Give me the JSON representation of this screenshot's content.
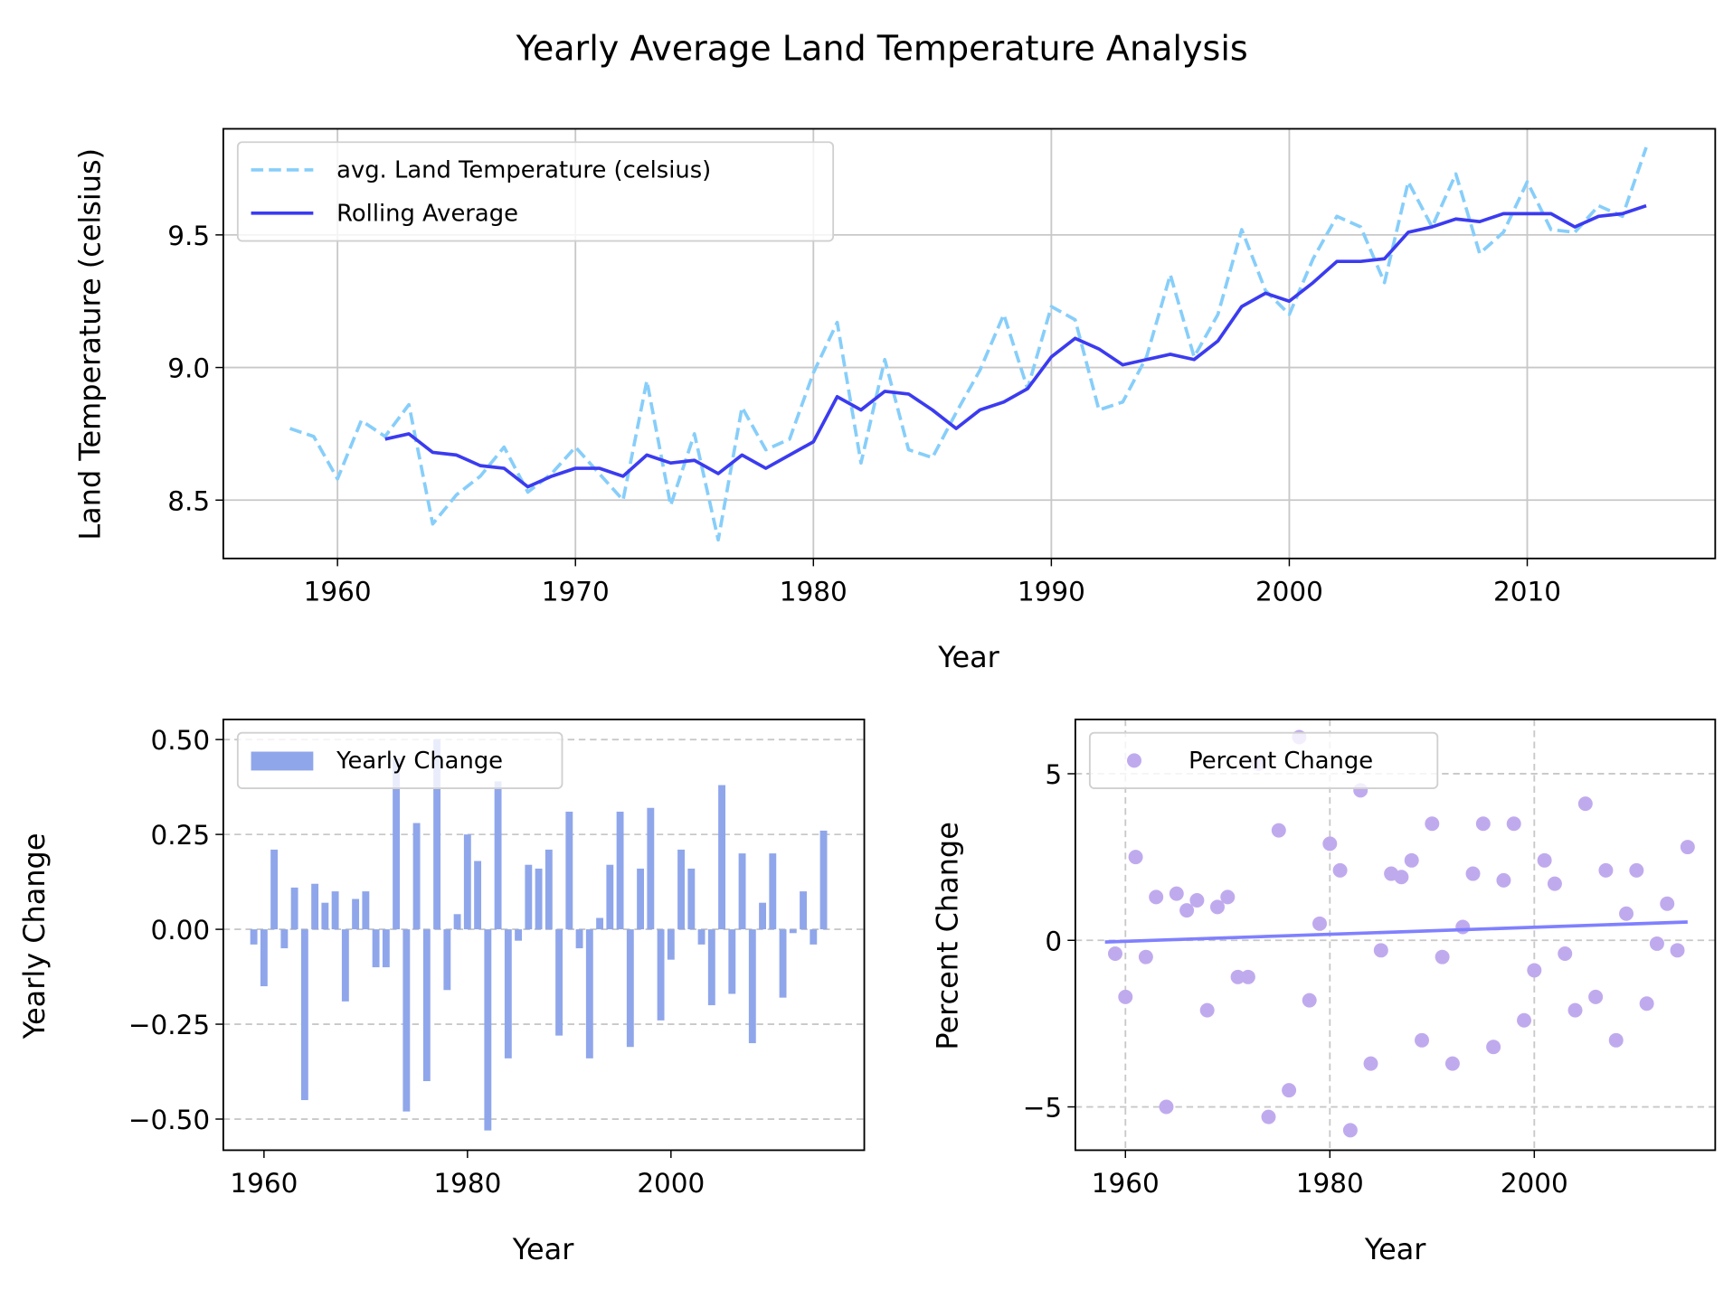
{
  "title": "Yearly Average Land Temperature Analysis",
  "chart_data": [
    {
      "type": "line",
      "xlabel": "Year",
      "ylabel": "Land Temperature (celsius)",
      "x": [
        1958,
        1959,
        1960,
        1961,
        1962,
        1963,
        1964,
        1965,
        1966,
        1967,
        1968,
        1969,
        1970,
        1971,
        1972,
        1973,
        1974,
        1975,
        1976,
        1977,
        1978,
        1979,
        1980,
        1981,
        1982,
        1983,
        1984,
        1985,
        1986,
        1987,
        1988,
        1989,
        1990,
        1991,
        1992,
        1993,
        1994,
        1995,
        1996,
        1997,
        1998,
        1999,
        2000,
        2001,
        2002,
        2003,
        2004,
        2005,
        2006,
        2007,
        2008,
        2009,
        2010,
        2011,
        2012,
        2013,
        2014,
        2015
      ],
      "series": [
        {
          "name": "avg. Land Temperature (celsius)",
          "color": "#87cefa",
          "dashed": true,
          "values": [
            8.77,
            8.74,
            8.58,
            8.8,
            8.74,
            8.86,
            8.41,
            8.52,
            8.59,
            8.7,
            8.53,
            8.6,
            8.7,
            8.6,
            8.5,
            8.95,
            8.48,
            8.75,
            8.35,
            8.85,
            8.69,
            8.73,
            8.98,
            9.17,
            8.64,
            9.03,
            8.69,
            8.66,
            8.83,
            8.99,
            9.2,
            8.92,
            9.23,
            9.18,
            8.84,
            8.87,
            9.04,
            9.35,
            9.04,
            9.2,
            9.52,
            9.29,
            9.2,
            9.41,
            9.57,
            9.53,
            9.32,
            9.7,
            9.53,
            9.73,
            9.43,
            9.51,
            9.7,
            9.52,
            9.51,
            9.61,
            9.57,
            9.83
          ]
        },
        {
          "name": "Rolling Average",
          "color": "#3b3bf0",
          "dashed": false,
          "values": [
            null,
            null,
            null,
            null,
            8.73,
            8.75,
            8.68,
            8.67,
            8.63,
            8.62,
            8.55,
            8.59,
            8.62,
            8.62,
            8.59,
            8.67,
            8.64,
            8.65,
            8.6,
            8.67,
            8.62,
            8.67,
            8.72,
            8.89,
            8.84,
            8.91,
            8.9,
            8.84,
            8.77,
            8.84,
            8.87,
            8.92,
            9.04,
            9.11,
            9.07,
            9.01,
            9.03,
            9.05,
            9.03,
            9.1,
            9.23,
            9.28,
            9.25,
            9.32,
            9.4,
            9.4,
            9.41,
            9.51,
            9.53,
            9.56,
            9.55,
            9.58,
            9.58,
            9.58,
            9.53,
            9.57,
            9.58,
            9.61
          ]
        }
      ],
      "xlim": [
        1955.2,
        2017.9
      ],
      "ylim": [
        8.28,
        9.9
      ],
      "xticks": [
        1960,
        1970,
        1980,
        1990,
        2000,
        2010
      ],
      "yticks": [
        8.5,
        {
          "value": 9,
          "label": "9.0"
        },
        9.5
      ],
      "grid": "both",
      "grid_style": "solid",
      "legend": "upper left"
    },
    {
      "type": "bar",
      "xlabel": "Year",
      "ylabel": "Yearly Change",
      "x": [
        1959,
        1960,
        1961,
        1962,
        1963,
        1964,
        1965,
        1966,
        1967,
        1968,
        1969,
        1970,
        1971,
        1972,
        1973,
        1974,
        1975,
        1976,
        1977,
        1978,
        1979,
        1980,
        1981,
        1982,
        1983,
        1984,
        1985,
        1986,
        1987,
        1988,
        1989,
        1990,
        1991,
        1992,
        1993,
        1994,
        1995,
        1996,
        1997,
        1998,
        1999,
        2000,
        2001,
        2002,
        2003,
        2004,
        2005,
        2006,
        2007,
        2008,
        2009,
        2010,
        2011,
        2012,
        2013,
        2014,
        2015
      ],
      "series": [
        {
          "name": "Yearly Change",
          "color": "#8fa6eb",
          "values": [
            -0.04,
            -0.15,
            0.21,
            -0.05,
            0.11,
            -0.45,
            0.12,
            0.07,
            0.1,
            -0.19,
            0.08,
            0.1,
            -0.1,
            -0.1,
            0.45,
            -0.48,
            0.28,
            -0.4,
            0.5,
            -0.16,
            0.04,
            0.25,
            0.18,
            -0.53,
            0.39,
            -0.34,
            -0.03,
            0.17,
            0.16,
            0.21,
            -0.28,
            0.31,
            -0.05,
            -0.34,
            0.03,
            0.17,
            0.31,
            -0.31,
            0.16,
            0.32,
            -0.24,
            -0.08,
            0.21,
            0.16,
            -0.04,
            -0.2,
            0.38,
            -0.17,
            0.2,
            -0.3,
            0.07,
            0.2,
            -0.18,
            -0.01,
            0.1,
            -0.04,
            0.26
          ]
        }
      ],
      "xlim": [
        1956,
        2019
      ],
      "ylim": [
        -0.582,
        0.553
      ],
      "xticks": [
        1960,
        1980,
        2000
      ],
      "yticks": [
        {
          "value": -0.5,
          "label": "−0.50"
        },
        {
          "value": -0.25,
          "label": "−0.25"
        },
        {
          "value": 0,
          "label": "0.00"
        },
        {
          "value": 0.25,
          "label": "0.25"
        },
        {
          "value": 0.5,
          "label": "0.50"
        }
      ],
      "grid": "y",
      "grid_style": "dashed",
      "legend": "upper left"
    },
    {
      "type": "scatter",
      "xlabel": "Year",
      "ylabel": "Percent Change",
      "x": [
        1959,
        1960,
        1961,
        1962,
        1963,
        1964,
        1965,
        1966,
        1967,
        1968,
        1969,
        1970,
        1971,
        1972,
        1973,
        1974,
        1975,
        1976,
        1977,
        1978,
        1979,
        1980,
        1981,
        1982,
        1983,
        1984,
        1985,
        1986,
        1987,
        1988,
        1989,
        1990,
        1991,
        1992,
        1993,
        1994,
        1995,
        1996,
        1997,
        1998,
        1999,
        2000,
        2001,
        2002,
        2003,
        2004,
        2005,
        2006,
        2007,
        2008,
        2009,
        2010,
        2011,
        2012,
        2013,
        2014,
        2015
      ],
      "series": [
        {
          "name": "Percent Change",
          "color": "#c0aaee",
          "values": [
            -0.4,
            -1.7,
            2.5,
            -0.5,
            1.3,
            -5.0,
            1.4,
            0.9,
            1.2,
            -2.1,
            1.0,
            1.3,
            -1.1,
            -1.1,
            5.3,
            -5.3,
            3.3,
            -4.5,
            6.1,
            -1.8,
            0.5,
            2.9,
            2.1,
            -5.7,
            4.5,
            -3.7,
            -0.3,
            2.0,
            1.9,
            2.4,
            -3.0,
            3.5,
            -0.5,
            -3.7,
            0.4,
            2.0,
            3.5,
            -3.2,
            1.8,
            3.5,
            -2.4,
            -0.9,
            2.4,
            1.7,
            -0.4,
            -2.1,
            4.1,
            -1.7,
            2.1,
            -3.0,
            0.8,
            2.1,
            -1.9,
            -0.1,
            1.1,
            -0.3,
            2.8
          ]
        }
      ],
      "trend": {
        "color": "#8080ff",
        "x": [
          1958,
          2015
        ],
        "values": [
          -0.05,
          0.55
        ]
      },
      "xlim": [
        1955.1,
        2017.7
      ],
      "ylim": [
        -6.3,
        6.63
      ],
      "xticks": [
        1960,
        1980,
        2000
      ],
      "yticks": [
        {
          "value": -5,
          "label": "−5"
        },
        0,
        5
      ],
      "grid": "both",
      "grid_style": "dashed",
      "legend": "upper left"
    }
  ]
}
